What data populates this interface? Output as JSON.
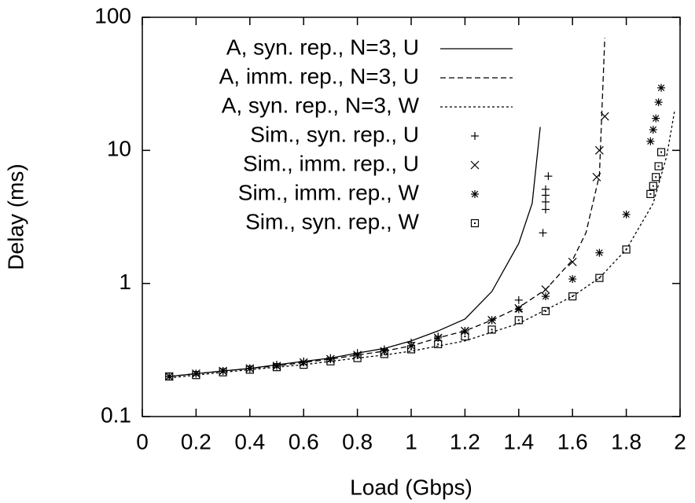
{
  "chart_data": {
    "type": "line",
    "x_label": "Load (Gbps)",
    "y_label": "Delay (ms)",
    "xlim": [
      0,
      2
    ],
    "xticks": [
      0,
      0.2,
      0.4,
      0.6,
      0.8,
      1,
      1.2,
      1.4,
      1.6,
      1.8,
      2
    ],
    "ylim": [
      0.1,
      100
    ],
    "yticks": [
      0.1,
      1,
      10,
      100
    ],
    "y_scale": "log",
    "legend": "top-left",
    "series": [
      {
        "name": "A, syn. rep., N=3, U",
        "color": "#000000",
        "mode": "line",
        "dash": "solid",
        "x": [
          0.1,
          0.2,
          0.3,
          0.4,
          0.5,
          0.6,
          0.7,
          0.8,
          0.9,
          1.0,
          1.1,
          1.2,
          1.3,
          1.4,
          1.45,
          1.48
        ],
        "values": [
          0.2,
          0.21,
          0.22,
          0.23,
          0.245,
          0.26,
          0.275,
          0.3,
          0.325,
          0.37,
          0.44,
          0.54,
          0.87,
          2.0,
          4.0,
          15
        ]
      },
      {
        "name": "A, imm. rep., N=3, U",
        "color": "#000000",
        "mode": "line",
        "dash": "dashed",
        "x": [
          0.1,
          0.2,
          0.3,
          0.4,
          0.5,
          0.6,
          0.7,
          0.8,
          0.9,
          1.0,
          1.1,
          1.2,
          1.3,
          1.4,
          1.5,
          1.6,
          1.65,
          1.7,
          1.72
        ],
        "values": [
          0.2,
          0.21,
          0.22,
          0.23,
          0.24,
          0.255,
          0.27,
          0.29,
          0.31,
          0.34,
          0.39,
          0.44,
          0.53,
          0.66,
          0.9,
          1.5,
          2.4,
          6.5,
          70
        ]
      },
      {
        "name": "A, syn. rep., N=3, W",
        "color": "#000000",
        "mode": "line",
        "dash": "dotted",
        "x": [
          0.1,
          0.2,
          0.3,
          0.4,
          0.5,
          0.6,
          0.7,
          0.8,
          0.9,
          1.0,
          1.2,
          1.4,
          1.6,
          1.7,
          1.8,
          1.9,
          1.95,
          1.98
        ],
        "values": [
          0.195,
          0.205,
          0.215,
          0.225,
          0.235,
          0.245,
          0.26,
          0.275,
          0.29,
          0.31,
          0.37,
          0.5,
          0.8,
          1.1,
          1.8,
          4,
          9,
          20
        ]
      },
      {
        "name": "Sim., syn. rep., U",
        "color": "#000000",
        "mode": "points",
        "marker": "plus",
        "x": [
          0.1,
          0.2,
          0.3,
          0.4,
          0.5,
          0.6,
          0.7,
          0.8,
          0.9,
          1.0,
          1.1,
          1.2,
          1.3,
          1.4,
          1.49,
          1.5,
          1.5,
          1.5,
          1.5,
          1.51
        ],
        "values": [
          0.2,
          0.21,
          0.22,
          0.23,
          0.245,
          0.26,
          0.275,
          0.3,
          0.32,
          0.36,
          0.4,
          0.44,
          0.53,
          0.75,
          2.4,
          3.6,
          4.1,
          4.6,
          5.1,
          6.4
        ]
      },
      {
        "name": "Sim., imm. rep., U",
        "color": "#000000",
        "mode": "points",
        "marker": "cross",
        "x": [
          0.1,
          0.2,
          0.3,
          0.4,
          0.5,
          0.6,
          0.7,
          0.8,
          0.9,
          1.0,
          1.1,
          1.2,
          1.3,
          1.4,
          1.5,
          1.6,
          1.69,
          1.7,
          1.72
        ],
        "values": [
          0.2,
          0.21,
          0.22,
          0.23,
          0.24,
          0.255,
          0.27,
          0.29,
          0.31,
          0.34,
          0.39,
          0.44,
          0.53,
          0.65,
          0.9,
          1.45,
          6.3,
          10,
          18
        ]
      },
      {
        "name": "Sim., imm. rep., W",
        "color": "#000000",
        "mode": "points",
        "marker": "star",
        "x": [
          0.1,
          0.2,
          0.3,
          0.4,
          0.5,
          0.6,
          0.7,
          0.8,
          0.9,
          1.0,
          1.1,
          1.2,
          1.3,
          1.4,
          1.5,
          1.6,
          1.7,
          1.8,
          1.89,
          1.9,
          1.91,
          1.92,
          1.93
        ],
        "values": [
          0.2,
          0.21,
          0.22,
          0.23,
          0.24,
          0.255,
          0.27,
          0.29,
          0.31,
          0.34,
          0.39,
          0.44,
          0.53,
          0.64,
          0.8,
          1.08,
          1.7,
          3.3,
          11.7,
          14.3,
          17.4,
          23,
          29.5
        ]
      },
      {
        "name": "Sim., syn. rep., W",
        "color": "#000000",
        "mode": "points",
        "marker": "square",
        "x": [
          0.1,
          0.2,
          0.3,
          0.4,
          0.5,
          0.6,
          0.7,
          0.8,
          0.9,
          1.0,
          1.1,
          1.2,
          1.3,
          1.4,
          1.5,
          1.6,
          1.7,
          1.8,
          1.89,
          1.9,
          1.91,
          1.92,
          1.93
        ],
        "values": [
          0.2,
          0.205,
          0.215,
          0.225,
          0.235,
          0.245,
          0.26,
          0.275,
          0.295,
          0.32,
          0.35,
          0.4,
          0.45,
          0.53,
          0.62,
          0.8,
          1.1,
          1.8,
          4.7,
          5.4,
          6.3,
          7.6,
          9.7
        ]
      }
    ]
  }
}
